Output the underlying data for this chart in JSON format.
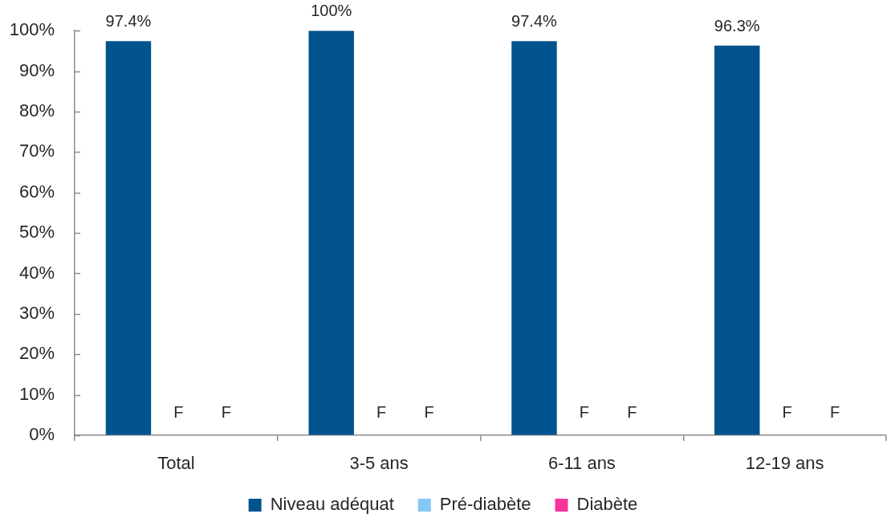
{
  "chart_data": {
    "type": "bar",
    "categories": [
      "Total",
      "3-5 ans",
      "6-11 ans",
      "12-19 ans"
    ],
    "series": [
      {
        "name": "Niveau adéquat",
        "color": "#00538d",
        "values": [
          97.4,
          100,
          97.4,
          96.3
        ],
        "value_labels": [
          "97.4%",
          "100%",
          "97.4%",
          "96.3%"
        ]
      },
      {
        "name": "Pré-diabète",
        "color": "#85c8f7",
        "values": [
          null,
          null,
          null,
          null
        ],
        "value_labels": [
          "F",
          "F",
          "F",
          "F"
        ]
      },
      {
        "name": "Diabète",
        "color": "#f7349a",
        "values": [
          null,
          null,
          null,
          null
        ],
        "value_labels": [
          "F",
          "F",
          "F",
          "F"
        ]
      }
    ],
    "ylim": [
      0,
      100
    ],
    "yticks": [
      {
        "value": 0,
        "label": "0%"
      },
      {
        "value": 10,
        "label": "10%"
      },
      {
        "value": 20,
        "label": "20%"
      },
      {
        "value": 30,
        "label": "30%"
      },
      {
        "value": 40,
        "label": "40%"
      },
      {
        "value": 50,
        "label": "50%"
      },
      {
        "value": 60,
        "label": "60%"
      },
      {
        "value": 70,
        "label": "70%"
      },
      {
        "value": 80,
        "label": "80%"
      },
      {
        "value": 90,
        "label": "90%"
      },
      {
        "value": 100,
        "label": "100%"
      }
    ],
    "grid": false,
    "legend": "bottom"
  }
}
